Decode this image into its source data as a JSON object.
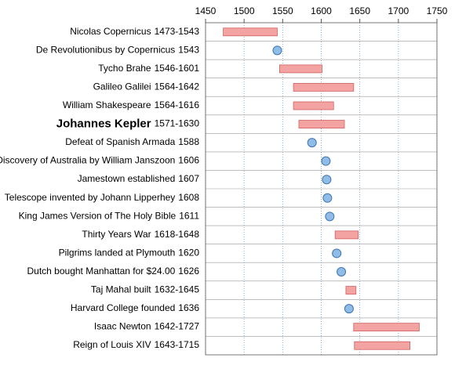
{
  "chart_data": {
    "type": "timeline",
    "names": [
      "Nicolas Copernicus",
      "De Revolutionibus by Copernicus",
      "Tycho Brahe",
      "Galileo Galilei",
      "William Shakespeare",
      "Johannes Kepler",
      "Defeat of Spanish Armada",
      "Discovery of Australia by William Janszoon",
      "Jamestown established",
      "Telescope invented by Johann Lipperhey",
      "King James Version of The Holy Bible",
      "Thirty Years War",
      "Pilgrims landed at Plymouth",
      "Dutch bought Manhattan for $24.00",
      "Taj Mahal built",
      "Harvard College founded",
      "Isaac Newton",
      "Reign of Louis XIV"
    ],
    "dates": [
      "1473-1543",
      "1543",
      "1546-1601",
      "1564-1642",
      "1564-1616",
      "1571-1630",
      "1588",
      "1606",
      "1607",
      "1608",
      "1611",
      "1618-1648",
      "1620",
      "1626",
      "1632-1645",
      "1636",
      "1642-1727",
      "1643-1715"
    ],
    "emphasis": [
      false,
      false,
      false,
      false,
      false,
      true,
      false,
      false,
      false,
      false,
      false,
      false,
      false,
      false,
      false,
      false,
      false,
      false
    ],
    "start": [
      1473,
      1543,
      1546,
      1564,
      1564,
      1571,
      1588,
      1606,
      1607,
      1608,
      1611,
      1618,
      1620,
      1626,
      1632,
      1636,
      1642,
      1643
    ],
    "end": [
      1543,
      null,
      1601,
      1642,
      1616,
      1630,
      null,
      null,
      null,
      null,
      null,
      1648,
      null,
      null,
      1645,
      null,
      1727,
      1715
    ],
    "span_color": "#f4a3a3",
    "event_color": "#8fbde8",
    "xlim": [
      1450,
      1750
    ],
    "xticks": [
      1450,
      1500,
      1550,
      1600,
      1650,
      1700,
      1750
    ],
    "grid": true
  }
}
